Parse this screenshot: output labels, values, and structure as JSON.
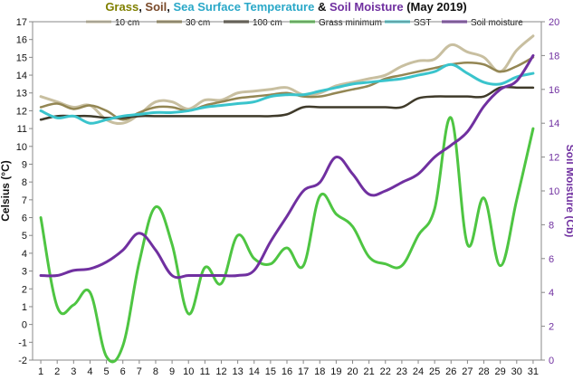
{
  "chart_data": {
    "type": "line",
    "title": {
      "parts": [
        {
          "text": "Grass",
          "color": "#808000"
        },
        {
          "text": ", ",
          "color": "#111111"
        },
        {
          "text": "Soil",
          "color": "#7a4a2a"
        },
        {
          "text": ", ",
          "color": "#111111"
        },
        {
          "text": "Sea Surface Temperature",
          "color": "#2aa8c8"
        },
        {
          "text": " & ",
          "color": "#111111"
        },
        {
          "text": "Soil Moisture",
          "color": "#7030a0"
        },
        {
          "text": " (May 2019)",
          "color": "#111111"
        }
      ]
    },
    "xlabel": "",
    "ylabel": "Celsius (°C)",
    "y2label": "Soil Moisture (Cb)",
    "ylim": [
      -2,
      17
    ],
    "y2lim": [
      0,
      20
    ],
    "yticks": [
      "-2",
      "-1",
      "0",
      "1",
      "2",
      "3",
      "4",
      "5",
      "6",
      "7",
      "8",
      "9",
      "10",
      "11",
      "12",
      "13",
      "14",
      "15",
      "16",
      "17"
    ],
    "y2ticks": [
      "0",
      "2",
      "4",
      "6",
      "8",
      "10",
      "12",
      "14",
      "16",
      "18",
      "20"
    ],
    "x": [
      "1",
      "2",
      "3",
      "4",
      "5",
      "6",
      "7",
      "8",
      "9",
      "10",
      "11",
      "12",
      "13",
      "14",
      "15",
      "16",
      "17",
      "18",
      "19",
      "20",
      "21",
      "22",
      "23",
      "24",
      "25",
      "26",
      "27",
      "28",
      "29",
      "30",
      "31"
    ],
    "grid": false,
    "legend_position": "top",
    "series": [
      {
        "name": "10 cm",
        "color": "#c8bfa0",
        "axis": "left",
        "values": [
          12.8,
          12.5,
          12.2,
          12.3,
          11.5,
          11.3,
          11.8,
          12.5,
          12.5,
          12.1,
          12.6,
          12.6,
          13.0,
          13.1,
          13.2,
          13.3,
          12.9,
          13.0,
          13.4,
          13.6,
          13.8,
          14.0,
          14.5,
          14.8,
          14.9,
          15.7,
          15.3,
          15.0,
          14.2,
          15.4,
          16.2
        ]
      },
      {
        "name": "30 cm",
        "color": "#938653",
        "axis": "left",
        "values": [
          12.2,
          12.4,
          12.1,
          12.3,
          12.0,
          11.5,
          11.9,
          12.2,
          12.2,
          12.0,
          12.3,
          12.5,
          12.7,
          12.8,
          12.9,
          13.0,
          12.8,
          12.8,
          13.0,
          13.2,
          13.4,
          13.8,
          14.0,
          14.2,
          14.4,
          14.6,
          14.7,
          14.6,
          14.2,
          14.5,
          15.0
        ]
      },
      {
        "name": "100 cm",
        "color": "#3f3a2a",
        "axis": "left",
        "values": [
          11.5,
          11.7,
          11.7,
          11.7,
          11.6,
          11.6,
          11.7,
          11.7,
          11.7,
          11.7,
          11.7,
          11.7,
          11.7,
          11.7,
          11.7,
          11.8,
          12.2,
          12.2,
          12.2,
          12.2,
          12.2,
          12.2,
          12.2,
          12.7,
          12.8,
          12.8,
          12.8,
          12.8,
          13.3,
          13.3,
          13.3
        ]
      },
      {
        "name": "Grass minimum",
        "color": "#4ec542",
        "axis": "left",
        "values": [
          6.0,
          1.0,
          1.1,
          1.8,
          -1.8,
          -1.2,
          3.5,
          6.6,
          4.5,
          0.6,
          3.2,
          2.3,
          5.0,
          3.7,
          3.4,
          4.3,
          3.3,
          7.2,
          6.2,
          5.5,
          3.8,
          3.4,
          3.3,
          5.0,
          6.5,
          11.6,
          4.5,
          7.1,
          3.3,
          7.0,
          11.0
        ]
      },
      {
        "name": "SST",
        "color": "#3ac4cc",
        "axis": "left",
        "values": [
          12.0,
          11.6,
          11.7,
          11.3,
          11.5,
          11.7,
          11.8,
          11.9,
          11.9,
          12.0,
          12.2,
          12.3,
          12.4,
          12.5,
          12.8,
          12.9,
          12.9,
          13.1,
          13.3,
          13.5,
          13.6,
          13.7,
          13.8,
          14.0,
          14.2,
          14.6,
          14.1,
          13.6,
          13.5,
          13.9,
          14.1
        ]
      },
      {
        "name": "Soil moisture",
        "color": "#7030a0",
        "axis": "right",
        "values": [
          5.0,
          5.0,
          5.3,
          5.4,
          5.8,
          6.5,
          7.5,
          6.5,
          5.0,
          5.0,
          5.0,
          5.0,
          5.0,
          5.3,
          7.0,
          8.5,
          10.0,
          10.5,
          12.0,
          11.0,
          9.8,
          10.0,
          10.5,
          11.0,
          12.0,
          12.7,
          13.5,
          15.0,
          16.0,
          16.5,
          18.0
        ]
      }
    ]
  }
}
